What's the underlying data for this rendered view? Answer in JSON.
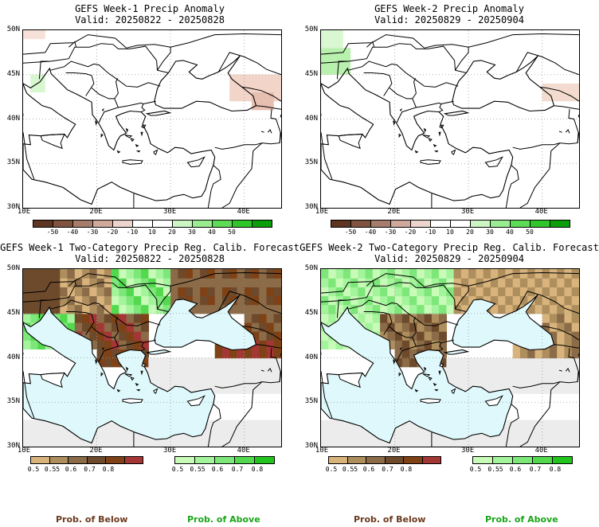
{
  "panels": [
    {
      "id": "tl",
      "title": "GEFS Week-1 Precip Anomaly",
      "valid": "Valid: 20250822 - 20250828",
      "type": "anomaly"
    },
    {
      "id": "tr",
      "title": "GEFS Week-2 Precip Anomaly",
      "valid": "Valid: 20250829 - 20250904",
      "type": "anomaly"
    },
    {
      "id": "bl",
      "title": "GEFS Week-1 Two-Category Precip Reg. Calib. Forecast",
      "valid": "Valid: 20250822 - 20250828",
      "type": "prob"
    },
    {
      "id": "br",
      "title": "GEFS Week-2 Two-Category Precip Reg. Calib. Forecast",
      "valid": "Valid: 20250829 - 20250904",
      "type": "prob"
    }
  ],
  "axes": {
    "lat_labels": [
      "50N",
      "45N",
      "40N",
      "35N",
      "30N"
    ],
    "lon_labels": [
      "10E",
      "20E",
      "30E",
      "40E"
    ]
  },
  "anomaly_colorbar": {
    "colors": [
      "#5e3422",
      "#7f5340",
      "#a67c6c",
      "#cfa99c",
      "#ecd5cc",
      "#ffffff",
      "#ffffff",
      "#cdf5c4",
      "#99ec90",
      "#5edb56",
      "#2ec62a",
      "#0a9e0a"
    ],
    "labels": [
      "-50",
      "-40",
      "-30",
      "-20",
      "-10",
      "10",
      "20",
      "30",
      "40",
      "50"
    ]
  },
  "prob_below_colorbar": {
    "colors": [
      "#d8b37c",
      "#ad8e5c",
      "#8b6b48",
      "#6e4a2c",
      "#7f4216",
      "#a53636"
    ],
    "labels": [
      "0.5",
      "0.55",
      "0.6",
      "0.7",
      "0.8"
    ]
  },
  "prob_above_colorbar": {
    "colors": [
      "#c8fbb8",
      "#a4f49c",
      "#7ee77a",
      "#52d94e",
      "#22c41e"
    ],
    "labels": [
      "0.5",
      "0.55",
      "0.6",
      "0.7",
      "0.8"
    ]
  },
  "footer": {
    "below_left": "Prob. of Below",
    "above_left": "Prob. of Above",
    "below_right": "Prob. of Below",
    "above_right": "Prob. of Above"
  },
  "colors": {
    "below_text": "#6b3a1e",
    "above_text": "#1aa51a",
    "sea_fill": "#dff8fb",
    "land_gray": "#ececec"
  }
}
